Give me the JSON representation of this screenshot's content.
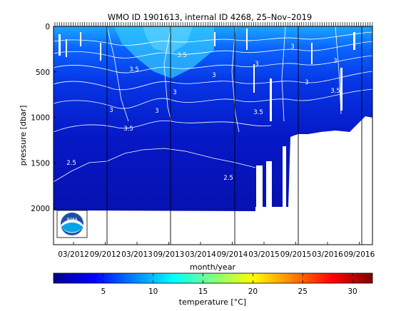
{
  "chart_data": {
    "type": "heatmap",
    "title": "WMO ID 1901613, internal ID 4268, 25–Nov–2019",
    "xlabel": "month/year",
    "ylabel": "pressure [dbar]",
    "x_ticks": [
      "03/2012",
      "09/2012",
      "03/2013",
      "09/2013",
      "03/2014",
      "09/2014",
      "03/2015",
      "09/2015",
      "03/2016",
      "09/2016"
    ],
    "y_ticks": [
      "0",
      "500",
      "1000",
      "1500",
      "2000"
    ],
    "ylim": [
      2400,
      0
    ],
    "xlim": [
      "2012-03",
      "2017-01"
    ],
    "colorbar": {
      "label": "temperature [°C]",
      "ticks": [
        "5",
        "10",
        "15",
        "20",
        "25",
        "30"
      ],
      "range": [
        0,
        32
      ],
      "colormap": "jet"
    },
    "contour_labels": [
      "3",
      "3.5",
      "3",
      "3",
      "2.5",
      "3.5",
      "3",
      "3",
      "3.5",
      "2.5",
      "3.5",
      "3",
      "3",
      "3.5",
      "3"
    ],
    "contour_levels": [
      2.5,
      3,
      3.5,
      4,
      4.5,
      5,
      5.5,
      6,
      6.5,
      7
    ],
    "approx_temperature_profile": [
      {
        "pressure": 0,
        "temp": 10
      },
      {
        "pressure": 200,
        "temp": 7
      },
      {
        "pressure": 500,
        "temp": 5
      },
      {
        "pressure": 800,
        "temp": 4
      },
      {
        "pressure": 1000,
        "temp": 3.5
      },
      {
        "pressure": 1500,
        "temp": 2.8
      },
      {
        "pressure": 2000,
        "temp": 2.3
      }
    ],
    "profile_max_depth": [
      {
        "date": "2012-03",
        "pressure": 2000
      },
      {
        "date": "2015-03",
        "pressure": 2000
      },
      {
        "date": "2015-09",
        "pressure": 1950
      },
      {
        "date": "2016-03",
        "pressure": 1200
      },
      {
        "date": "2016-12",
        "pressure": 1000
      }
    ],
    "logo": "noaa-logo"
  }
}
